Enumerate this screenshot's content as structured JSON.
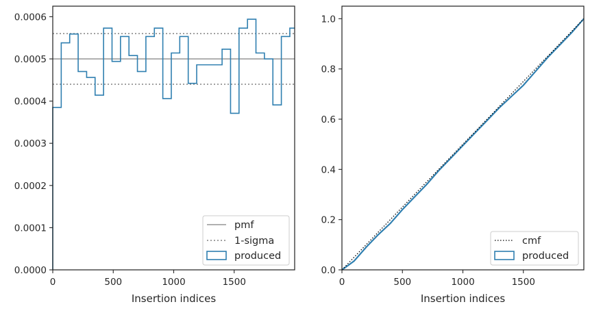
{
  "chart_data": [
    {
      "type": "step",
      "xlabel": "Insertion indices",
      "ylabel": "",
      "xlim": [
        0,
        2000
      ],
      "ylim": [
        0,
        0.000625
      ],
      "xticks": [
        0,
        500,
        1000,
        1500
      ],
      "yticks": [
        0,
        0.0001,
        0.0002,
        0.0003,
        0.0004,
        0.0005,
        0.0006
      ],
      "ytick_labels": [
        "0.0000",
        "0.0001",
        "0.0002",
        "0.0003",
        "0.0004",
        "0.0005",
        "0.0006"
      ],
      "grid": false,
      "legend": {
        "placement": "bottom-right",
        "entries": [
          "pmf",
          "1-sigma",
          "produced"
        ]
      },
      "pmf": {
        "name": "pmf",
        "value": 0.0005,
        "color": "#808080"
      },
      "sigma": {
        "name": "1-sigma",
        "values": [
          0.00044,
          0.00056
        ],
        "color": "#808080"
      },
      "produced": {
        "name": "produced",
        "color": "#2f7fb0",
        "bin_edges": [
          0,
          70,
          140,
          210,
          280,
          350,
          420,
          490,
          560,
          630,
          700,
          770,
          840,
          910,
          980,
          1050,
          1120,
          1190,
          1260,
          1330,
          1400,
          1470,
          1540,
          1610,
          1680,
          1750,
          1820,
          1890,
          1960,
          2000
        ],
        "values": [
          0.000385,
          0.000538,
          0.000559,
          0.00047,
          0.000456,
          0.000414,
          0.000573,
          0.000494,
          0.000553,
          0.000508,
          0.00047,
          0.000553,
          0.000573,
          0.000406,
          0.000514,
          0.000553,
          0.000442,
          0.000486,
          0.000486,
          0.000486,
          0.000523,
          0.000371,
          0.000573,
          0.000594,
          0.000514,
          0.0005,
          0.000391,
          0.000553,
          0.000573
        ]
      }
    },
    {
      "type": "line",
      "xlabel": "Insertion indices",
      "ylabel": "",
      "xlim": [
        0,
        2000
      ],
      "ylim": [
        0,
        1.05
      ],
      "xticks": [
        0,
        500,
        1000,
        1500
      ],
      "yticks": [
        0.0,
        0.2,
        0.4,
        0.6,
        0.8,
        1.0
      ],
      "ytick_labels": [
        "0.0",
        "0.2",
        "0.4",
        "0.6",
        "0.8",
        "1.0"
      ],
      "grid": false,
      "legend": {
        "placement": "bottom-right",
        "entries": [
          "cmf",
          "produced"
        ]
      },
      "cmf": {
        "name": "cmf",
        "x": [
          0,
          2000
        ],
        "y": [
          0,
          1
        ],
        "color": "#000000"
      },
      "produced": {
        "name": "produced",
        "color": "#2f7fb0",
        "x": [
          0,
          100,
          200,
          300,
          400,
          500,
          600,
          700,
          800,
          900,
          1000,
          1100,
          1200,
          1300,
          1400,
          1500,
          1600,
          1700,
          1800,
          1900,
          2000
        ],
        "y": [
          0,
          0.035,
          0.09,
          0.14,
          0.185,
          0.24,
          0.29,
          0.34,
          0.395,
          0.445,
          0.495,
          0.545,
          0.595,
          0.645,
          0.69,
          0.735,
          0.79,
          0.845,
          0.895,
          0.945,
          1.0
        ]
      }
    }
  ]
}
